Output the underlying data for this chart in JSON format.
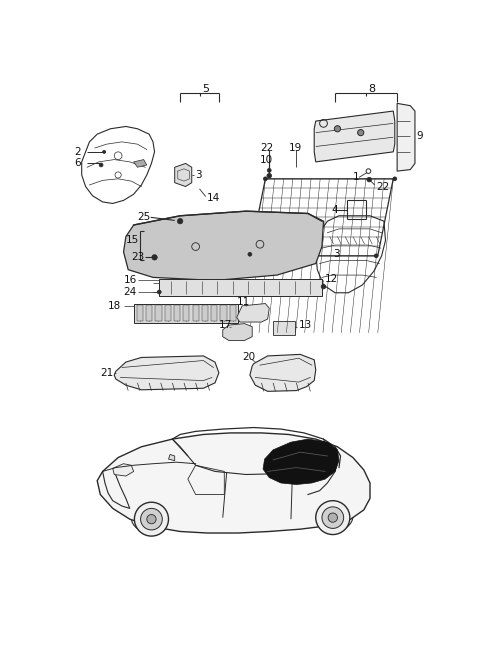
{
  "bg_color": "#ffffff",
  "line_color": "#2a2a2a",
  "text_color": "#111111",
  "fig_width": 4.8,
  "fig_height": 6.56,
  "dpi": 100
}
